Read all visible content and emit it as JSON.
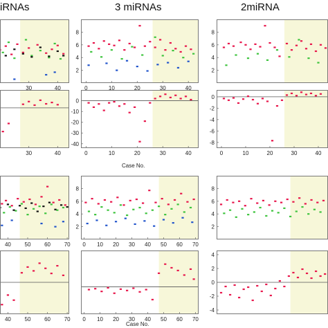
{
  "titles": {
    "left": "iRNAs",
    "middle": "3 miRNAs",
    "right": "2miRNA"
  },
  "xlabels": {
    "row2": "Case No.",
    "row4": "Case No."
  },
  "colors": {
    "shade": "#f7f7d9",
    "frame": "#777777",
    "threshold": "#555555",
    "red": "#e8174c",
    "green": "#3ec43e",
    "blue": "#2255cc",
    "black": "#111111"
  },
  "chart_data": [
    {
      "type": "scatter",
      "name": "left-row1",
      "xlim": [
        20,
        44
      ],
      "ylim": [
        0,
        10
      ],
      "xticks": [
        30,
        40
      ],
      "yticks": [],
      "shade_x": [
        27,
        44
      ],
      "series": [
        {
          "color": "red",
          "x": [
            20,
            22,
            24,
            26,
            28,
            30,
            33,
            36,
            38,
            40,
            42
          ],
          "y": [
            5.2,
            5.8,
            4.5,
            6.1,
            4.8,
            5.5,
            6.0,
            4.7,
            5.3,
            5.9,
            4.6
          ]
        },
        {
          "color": "green",
          "x": [
            21,
            23,
            25,
            29,
            31,
            34,
            37,
            39,
            41
          ],
          "y": [
            4.8,
            6.4,
            3.9,
            6.8,
            4.3,
            5.1,
            4.0,
            6.2,
            3.8
          ]
        },
        {
          "color": "black",
          "x": [
            22,
            25,
            28,
            31,
            34,
            37,
            40,
            42
          ],
          "y": [
            4.3,
            5.3,
            4.6,
            4.1,
            5.6,
            4.2,
            5.0,
            4.3
          ]
        },
        {
          "color": "blue",
          "x": [
            25,
            36,
            39
          ],
          "y": [
            0.6,
            1.3,
            1.7
          ]
        }
      ]
    },
    {
      "type": "scatter",
      "name": "middle-row1",
      "xlim": [
        -2,
        44
      ],
      "ylim": [
        0,
        10
      ],
      "xticks": [
        0,
        10,
        20,
        30,
        40
      ],
      "yticks": [
        2,
        4,
        6,
        8
      ],
      "shade_x": [
        26,
        44
      ],
      "series": [
        {
          "color": "red",
          "x": [
            1,
            3,
            5,
            7,
            9,
            11,
            13,
            15,
            17,
            19,
            21,
            23,
            25,
            27,
            29,
            31,
            33,
            35,
            37,
            39,
            41
          ],
          "y": [
            5.8,
            6.3,
            5.4,
            6.6,
            6.1,
            5.9,
            6.7,
            5.2,
            6.2,
            5.6,
            9.0,
            5.8,
            6.5,
            5.6,
            6.8,
            5.2,
            6.3,
            5.4,
            4.9,
            5.8,
            5.3
          ]
        },
        {
          "color": "green",
          "x": [
            2,
            6,
            10,
            14,
            18,
            22,
            27,
            30,
            34,
            38,
            42
          ],
          "y": [
            4.9,
            4.1,
            5.2,
            3.8,
            5.7,
            4.4,
            7.2,
            4.3,
            5.1,
            4.0,
            4.6
          ]
        },
        {
          "color": "blue",
          "x": [
            1,
            8,
            12,
            16,
            20,
            24,
            28,
            32,
            36,
            40
          ],
          "y": [
            2.8,
            3.1,
            2.0,
            3.5,
            2.6,
            1.9,
            2.9,
            3.2,
            2.4,
            3.4
          ]
        }
      ]
    },
    {
      "type": "scatter",
      "name": "right-row1",
      "xlim": [
        -2,
        44
      ],
      "ylim": [
        0,
        10
      ],
      "xticks": [],
      "yticks": [
        2,
        4,
        6,
        8
      ],
      "shade_x": [
        26,
        44
      ],
      "series": [
        {
          "color": "red",
          "x": [
            1,
            3,
            5,
            8,
            10,
            12,
            14,
            16,
            18,
            20,
            22,
            24,
            27,
            29,
            31,
            33,
            35,
            37,
            39,
            41,
            43
          ],
          "y": [
            5.6,
            6.2,
            5.8,
            6.4,
            6.0,
            5.3,
            6.1,
            5.7,
            9.0,
            6.3,
            5.6,
            4.2,
            6.2,
            5.2,
            5.9,
            6.6,
            5.4,
            6.1,
            5.0,
            6.0,
            5.5
          ]
        },
        {
          "color": "green",
          "x": [
            2,
            6,
            11,
            15,
            19,
            23,
            28,
            32,
            36,
            40
          ],
          "y": [
            2.8,
            4.4,
            3.9,
            4.6,
            3.6,
            5.2,
            4.1,
            6.8,
            3.9,
            3.2
          ]
        }
      ]
    },
    {
      "type": "scatter",
      "name": "left-row2",
      "xlim": [
        20,
        44
      ],
      "ylim": [
        -9,
        4
      ],
      "xticks": [
        30,
        40
      ],
      "yticks": [],
      "shade_x": [
        27,
        44
      ],
      "threshold": 0,
      "series": [
        {
          "color": "red",
          "x": [
            21,
            23,
            28,
            30,
            32,
            34,
            36,
            38,
            40
          ],
          "y": [
            -5.3,
            -3.5,
            0.8,
            1.4,
            0.6,
            1.7,
            0.9,
            1.2,
            0.7
          ]
        }
      ]
    },
    {
      "type": "scatter",
      "name": "middle-row2",
      "xlim": [
        -2,
        44
      ],
      "ylim": [
        -44,
        10
      ],
      "xticks": [
        0,
        10,
        20,
        30,
        40
      ],
      "yticks": [
        0,
        -10,
        -20,
        -30,
        -40
      ],
      "shade_x": [
        26,
        44
      ],
      "threshold": 0,
      "series": [
        {
          "color": "red",
          "x": [
            1,
            3,
            5,
            7,
            9,
            11,
            13,
            15,
            17,
            19,
            21,
            23,
            25,
            27,
            29,
            31,
            33,
            35,
            37,
            39,
            41
          ],
          "y": [
            -2,
            -6,
            -3,
            -9,
            -2,
            -1,
            -5,
            -3,
            -11,
            -6,
            -38,
            -19,
            -2,
            2,
            4,
            6,
            3,
            5,
            2,
            4,
            1
          ]
        }
      ]
    },
    {
      "type": "scatter",
      "name": "right-row2",
      "xlim": [
        -2,
        44
      ],
      "ylim": [
        -9,
        1.2
      ],
      "xticks": [
        0,
        10,
        20,
        30,
        40
      ],
      "yticks": [
        0,
        -2,
        -4,
        -6,
        -8
      ],
      "shade_x": [
        26,
        44
      ],
      "threshold": 0,
      "series": [
        {
          "color": "red",
          "x": [
            1,
            3,
            5,
            7,
            9,
            11,
            13,
            15,
            17,
            19,
            21,
            23,
            25,
            27,
            29,
            31,
            33,
            35,
            37,
            39,
            41
          ],
          "y": [
            -0.3,
            -0.6,
            -0.2,
            -1.1,
            -0.4,
            0.1,
            -0.5,
            -1.2,
            -0.3,
            -0.8,
            -7.7,
            -1.6,
            -0.6,
            0.3,
            0.6,
            0.2,
            0.8,
            0.4,
            0.6,
            0.2,
            0.5
          ]
        }
      ]
    },
    {
      "type": "scatter",
      "name": "left-row3",
      "xlim": [
        36,
        71
      ],
      "ylim": [
        0,
        10
      ],
      "xticks": [
        40,
        50,
        60,
        70
      ],
      "yticks": [],
      "shade_x": [
        46,
        71
      ],
      "series": [
        {
          "color": "red",
          "x": [
            37,
            39,
            42,
            45,
            48,
            51,
            54,
            57,
            60,
            63,
            66,
            69
          ],
          "y": [
            5.6,
            6.1,
            5.3,
            6.4,
            5.9,
            6.3,
            5.5,
            6.7,
            8.3,
            5.8,
            6.2,
            5.4
          ]
        },
        {
          "color": "green",
          "x": [
            38,
            41,
            44,
            47,
            50,
            53,
            56,
            59,
            62,
            65,
            68
          ],
          "y": [
            4.2,
            5.1,
            4.5,
            5.6,
            3.9,
            4.8,
            5.2,
            4.1,
            5.5,
            4.6,
            5.0
          ]
        },
        {
          "color": "black",
          "x": [
            36,
            40,
            43,
            46,
            49,
            52,
            55,
            58,
            61,
            64,
            67,
            70
          ],
          "y": [
            5.0,
            5.5,
            4.6,
            5.3,
            4.9,
            5.7,
            4.4,
            5.2,
            5.8,
            4.7,
            5.4,
            5.1
          ]
        },
        {
          "color": "blue",
          "x": [
            37,
            42,
            57,
            64,
            68
          ],
          "y": [
            2.2,
            3.0,
            2.5,
            2.0,
            2.8
          ]
        }
      ]
    },
    {
      "type": "scatter",
      "name": "middle-row3",
      "xlim": [
        -2,
        72
      ],
      "ylim": [
        0,
        10
      ],
      "xticks": [
        0,
        10,
        20,
        30,
        40,
        50,
        60,
        70
      ],
      "yticks": [
        2,
        4,
        6,
        8
      ],
      "shade_x": [
        47,
        72
      ],
      "series": [
        {
          "color": "red",
          "x": [
            1,
            5,
            9,
            13,
            17,
            21,
            25,
            29,
            33,
            37,
            41,
            45,
            49,
            53,
            57,
            61,
            65,
            69
          ],
          "y": [
            5.8,
            6.4,
            5.6,
            6.2,
            5.9,
            6.6,
            5.4,
            6.1,
            6.3,
            5.7,
            7.7,
            5.8,
            6.4,
            5.5,
            6.2,
            7.2,
            5.9,
            6.3
          ]
        },
        {
          "color": "green",
          "x": [
            3,
            7,
            11,
            15,
            19,
            23,
            27,
            31,
            35,
            39,
            43,
            47,
            51,
            55,
            59,
            63,
            67
          ],
          "y": [
            4.4,
            3.9,
            5.1,
            4.6,
            4.2,
            5.4,
            3.8,
            4.7,
            5.0,
            4.1,
            4.6,
            5.2,
            3.9,
            4.8,
            5.5,
            4.3,
            5.0
          ]
        },
        {
          "color": "blue",
          "x": [
            2,
            8,
            14,
            20,
            26,
            32,
            38,
            44,
            50,
            56,
            62,
            68
          ],
          "y": [
            2.5,
            3.0,
            2.2,
            2.8,
            3.3,
            2.4,
            2.9,
            2.1,
            3.1,
            2.6,
            3.4,
            2.7
          ]
        }
      ]
    },
    {
      "type": "scatter",
      "name": "right-row3",
      "xlim": [
        -2,
        72
      ],
      "ylim": [
        0,
        10
      ],
      "xticks": [],
      "yticks": [
        2,
        4,
        6,
        8
      ],
      "shade_x": [
        47,
        72
      ],
      "series": [
        {
          "color": "red",
          "x": [
            1,
            5,
            9,
            13,
            17,
            21,
            25,
            29,
            33,
            37,
            41,
            45,
            49,
            53,
            57,
            61,
            65,
            69
          ],
          "y": [
            5.5,
            6.2,
            5.8,
            6.0,
            5.3,
            6.4,
            5.7,
            6.1,
            5.4,
            6.0,
            5.8,
            6.3,
            5.9,
            6.5,
            5.6,
            6.2,
            5.8,
            6.1
          ]
        },
        {
          "color": "green",
          "x": [
            3,
            7,
            11,
            15,
            19,
            23,
            27,
            31,
            35,
            39,
            43,
            47,
            51,
            55,
            59,
            63,
            67
          ],
          "y": [
            4.1,
            4.6,
            3.5,
            4.8,
            3.9,
            4.3,
            5.0,
            3.7,
            4.5,
            4.2,
            4.9,
            3.6,
            4.4,
            5.1,
            4.0,
            4.7,
            4.3
          ]
        }
      ]
    },
    {
      "type": "scatter",
      "name": "left-row4",
      "xlim": [
        36,
        71
      ],
      "ylim": [
        -5,
        5
      ],
      "xticks": [
        40,
        50,
        60,
        70
      ],
      "yticks": [],
      "shade_x": [
        46,
        71
      ],
      "threshold": 0,
      "series": [
        {
          "color": "red",
          "x": [
            37,
            40,
            43,
            47,
            50,
            53,
            56,
            59,
            62,
            65,
            68
          ],
          "y": [
            -3.5,
            -2.0,
            -2.8,
            1.5,
            2.4,
            1.8,
            3.0,
            2.2,
            1.4,
            2.6,
            1.1
          ]
        }
      ]
    },
    {
      "type": "scatter",
      "name": "middle-row4",
      "xlim": [
        -2,
        72
      ],
      "ylim": [
        -6,
        8
      ],
      "xticks": [
        0,
        10,
        20,
        30,
        40,
        50,
        60,
        70
      ],
      "yticks": [],
      "shade_x": [
        47,
        72
      ],
      "threshold": 0,
      "series": [
        {
          "color": "red",
          "x": [
            3,
            7,
            11,
            15,
            19,
            23,
            27,
            31,
            35,
            39,
            43,
            47,
            51,
            55,
            59,
            63,
            67,
            69
          ],
          "y": [
            -0.6,
            -0.4,
            -1.0,
            -0.2,
            -1.4,
            -0.5,
            -0.8,
            -0.3,
            -1.1,
            -0.6,
            -2.8,
            3.0,
            5.0,
            4.2,
            3.6,
            2.6,
            3.9,
            1.7
          ]
        }
      ]
    },
    {
      "type": "scatter",
      "name": "right-row4",
      "xlim": [
        -2,
        72
      ],
      "ylim": [
        -4.6,
        4.6
      ],
      "xticks": [],
      "yticks": [
        4,
        2,
        0,
        -2,
        -4
      ],
      "shade_x": [
        47,
        72
      ],
      "threshold": 0,
      "series": [
        {
          "color": "red",
          "x": [
            1,
            4,
            7,
            10,
            13,
            16,
            19,
            22,
            25,
            28,
            31,
            34,
            37,
            40,
            43,
            46,
            49,
            52,
            55,
            58,
            61,
            64,
            67,
            70
          ],
          "y": [
            -1.5,
            -0.6,
            -1.8,
            -0.4,
            -2.2,
            -1.0,
            -0.7,
            -2.6,
            -0.5,
            -1.3,
            -0.3,
            -1.9,
            -0.9,
            0.2,
            -0.6,
            0.9,
            1.4,
            0.7,
            1.9,
            1.3,
            0.6,
            1.6,
            0.9,
            1.2
          ]
        }
      ]
    }
  ]
}
